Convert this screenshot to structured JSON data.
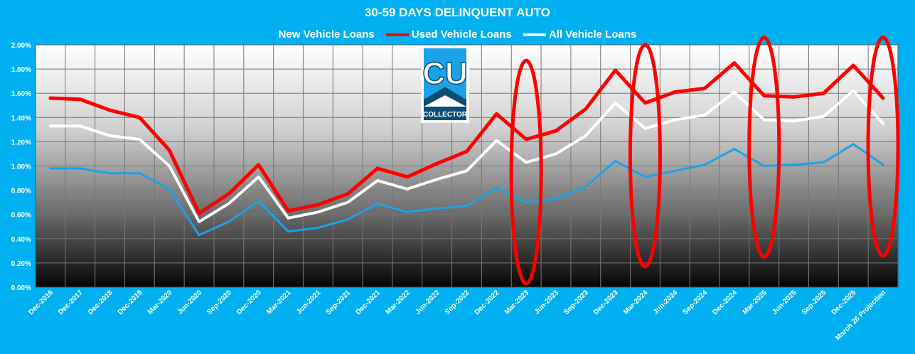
{
  "colors": {
    "background": "#00b0f0",
    "new": "#1aa3e8",
    "used": "#ff0000",
    "all": "#ffffff",
    "highlight": "#ff0000",
    "logo_blue": "#1aa3e8",
    "logo_dark": "#0b4d75"
  },
  "logo": {
    "text": "CU",
    "subtext": "COLLECTOR",
    "icon": "cu-collector-logo"
  },
  "chart_data": {
    "type": "line",
    "title": "30-59 DAYS DELINQUENT AUTO",
    "xlabel": "",
    "ylabel": "",
    "ylim": [
      0,
      2.0
    ],
    "yticks": [
      "0.00%",
      "0.20%",
      "0.40%",
      "0.60%",
      "0.80%",
      "1.00%",
      "1.20%",
      "1.40%",
      "1.60%",
      "1.80%",
      "2.00%"
    ],
    "grid": true,
    "legend_position": "top",
    "categories": [
      "Dec-2016",
      "Dec-2017",
      "Dec-2018",
      "Dec-2019",
      "Mar-2020",
      "Jun-2020",
      "Sep-2020",
      "Dec-2020",
      "Mar-2021",
      "Jun-2021",
      "Sep-2021",
      "Dec-2021",
      "Mar-2022",
      "Jun-2022",
      "Sep-2022",
      "Dec-2022",
      "Mar-2023",
      "Jun-2023",
      "Sep-2023",
      "Dec-2023",
      "Mar-2024",
      "Jun-2024",
      "Sep-2024",
      "Dec-2024",
      "Mar-2025",
      "Jun-2025",
      "Sep-2025",
      "Dec-2025",
      "March 26 Projection"
    ],
    "series": [
      {
        "name": "New Vehicle Loans",
        "color_key": "new",
        "values": [
          0.98,
          0.98,
          0.94,
          0.94,
          0.81,
          0.43,
          0.54,
          0.71,
          0.46,
          0.49,
          0.56,
          0.69,
          0.62,
          0.65,
          0.67,
          0.82,
          0.7,
          0.73,
          0.83,
          1.04,
          0.91,
          0.96,
          1.01,
          1.14,
          1.0,
          1.01,
          1.03,
          1.18,
          1.01
        ]
      },
      {
        "name": "Used Vehicle Loans",
        "color_key": "used",
        "values": [
          1.56,
          1.55,
          1.46,
          1.4,
          1.13,
          0.61,
          0.77,
          1.01,
          0.63,
          0.68,
          0.77,
          0.98,
          0.91,
          1.02,
          1.12,
          1.43,
          1.22,
          1.29,
          1.47,
          1.79,
          1.52,
          1.61,
          1.64,
          1.85,
          1.58,
          1.57,
          1.6,
          1.83,
          1.56
        ]
      },
      {
        "name": "All Vehicle Loans",
        "color_key": "all",
        "values": [
          1.33,
          1.33,
          1.25,
          1.22,
          1.0,
          0.54,
          0.69,
          0.91,
          0.57,
          0.62,
          0.7,
          0.88,
          0.81,
          0.89,
          0.96,
          1.21,
          1.03,
          1.1,
          1.25,
          1.52,
          1.31,
          1.38,
          1.42,
          1.61,
          1.38,
          1.37,
          1.41,
          1.62,
          1.35
        ]
      }
    ],
    "highlights": [
      {
        "category": "Mar-2023",
        "from": 0.03,
        "to": 1.87
      },
      {
        "category": "Mar-2024",
        "from": 0.17,
        "to": 2.0
      },
      {
        "category": "Mar-2025",
        "from": 0.25,
        "to": 2.06
      },
      {
        "category": "March 26 Projection",
        "from": 0.26,
        "to": 2.06
      }
    ]
  }
}
